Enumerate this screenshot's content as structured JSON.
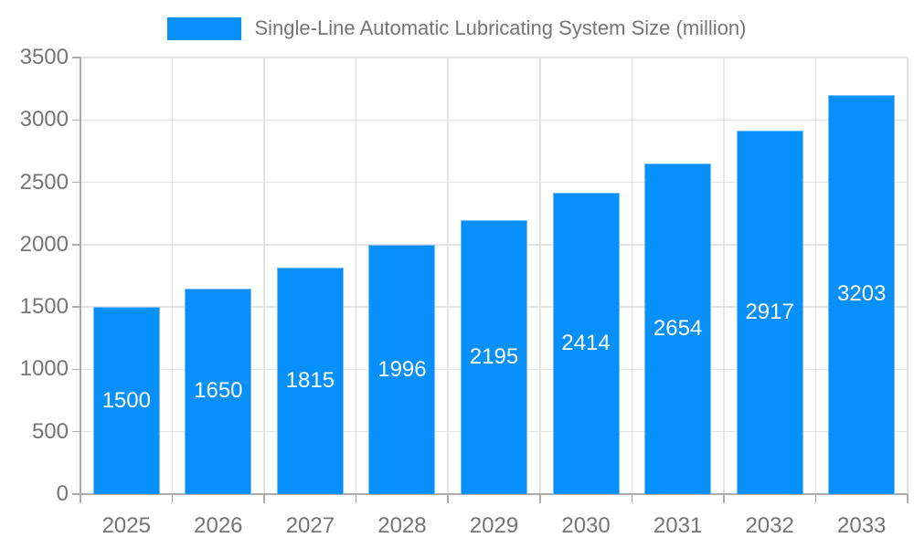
{
  "legend": {
    "label": "Single-Line Automatic Lubricating System Size (million)"
  },
  "chart_data": {
    "type": "bar",
    "title": "Single-Line Automatic Lubricating System Size (million)",
    "categories": [
      "2025",
      "2026",
      "2027",
      "2028",
      "2029",
      "2030",
      "2031",
      "2032",
      "2033"
    ],
    "values": [
      1500,
      1650,
      1815,
      1996,
      2195,
      2414,
      2654,
      2917,
      3203
    ],
    "xlabel": "",
    "ylabel": "",
    "ylim": [
      0,
      3500
    ],
    "yticks": [
      0,
      500,
      1000,
      1500,
      2000,
      2500,
      3000,
      3500
    ],
    "grid": true,
    "legend_position": "top-center",
    "value_labels": "inside-center",
    "colors": {
      "bar": "#0890FA",
      "bar_border": "#74BEF9",
      "grid": "#E4E4E4",
      "axis": "#ACACAC",
      "tick_text": "#757575",
      "value_text": "#FFFFFF",
      "background": "#FFFFFF"
    }
  }
}
